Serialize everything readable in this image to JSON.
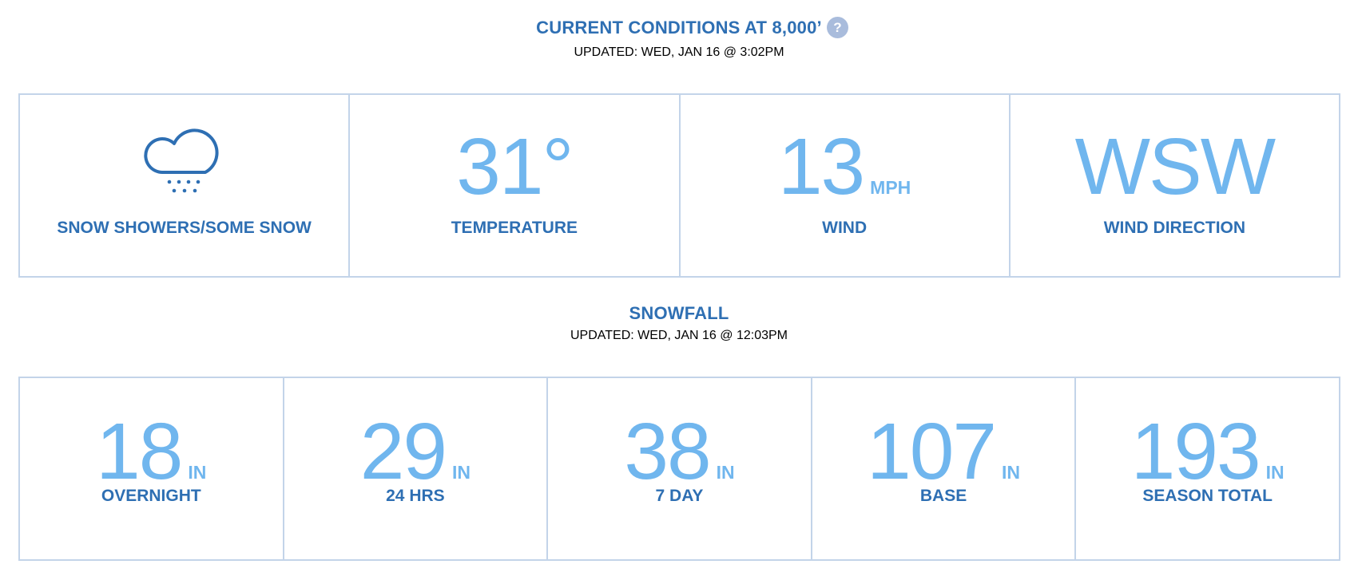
{
  "current": {
    "title": "CURRENT CONDITIONS AT 8,000’",
    "help_icon": "?",
    "updated": "UPDATED: WED, JAN 16 @ 3:02PM",
    "conditions_icon": "snow-showers-icon",
    "conditions_label": "SNOW SHOWERS/SOME SNOW",
    "temperature_value": "31°",
    "temperature_label": "TEMPERATURE",
    "wind_value": "13",
    "wind_unit": "MPH",
    "wind_label": "WIND",
    "direction_value": "WSW",
    "direction_label": "WIND DIRECTION"
  },
  "snowfall": {
    "title": "SNOWFALL",
    "updated": "UPDATED: WED, JAN 16 @ 12:03PM",
    "items": [
      {
        "value": "18",
        "unit": "IN",
        "label": "OVERNIGHT"
      },
      {
        "value": "29",
        "unit": "IN",
        "label": "24 HRS"
      },
      {
        "value": "38",
        "unit": "IN",
        "label": "7 DAY"
      },
      {
        "value": "107",
        "unit": "IN",
        "label": "BASE"
      },
      {
        "value": "193",
        "unit": "IN",
        "label": "SEASON TOTAL"
      }
    ]
  },
  "colors": {
    "heading": "#2e6fb3",
    "accent": "#70b6ee",
    "border": "#c3d4e9",
    "help_badge": "#a9bcdc"
  }
}
